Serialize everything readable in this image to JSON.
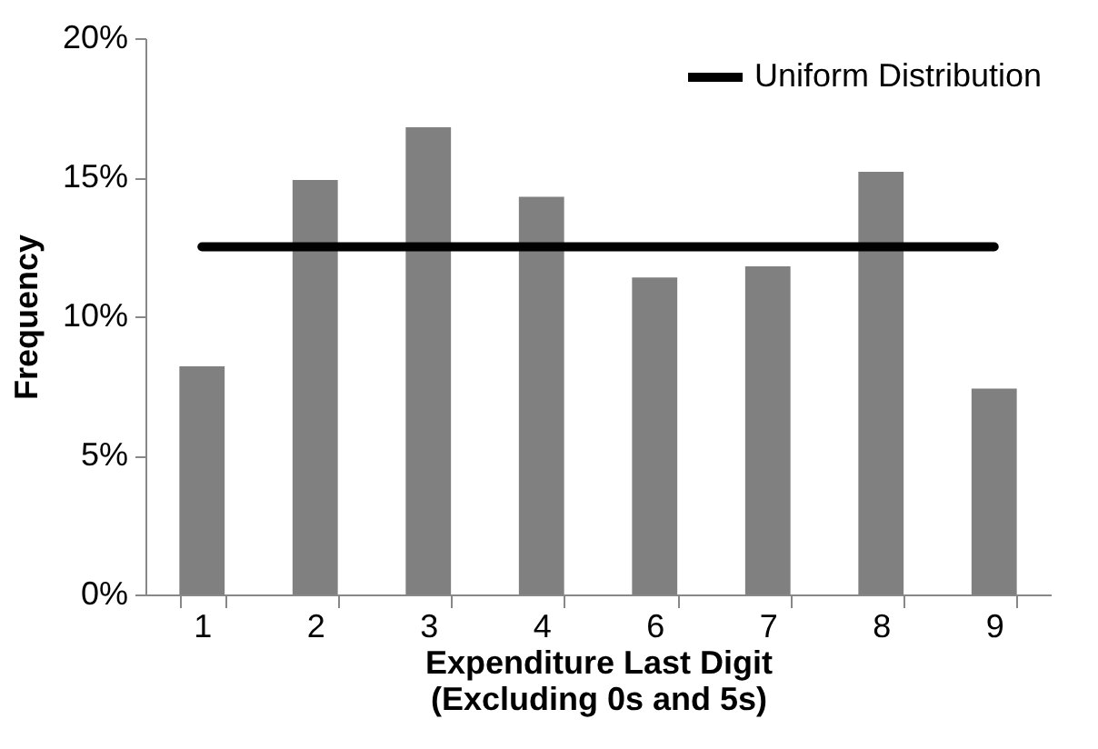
{
  "chart_data": {
    "type": "bar",
    "xlabel": "Expenditure Last Digit\n(Excluding 0s and 5s)",
    "ylabel": "Frequency",
    "categories": [
      "1",
      "2",
      "3",
      "4",
      "6",
      "7",
      "8",
      "9"
    ],
    "series": [
      {
        "color": "#808080",
        "values": [
          8.2,
          14.9,
          16.8,
          14.3,
          11.4,
          11.8,
          15.2,
          7.4
        ]
      },
      {
        "type": "line",
        "name": "Uniform Distribution",
        "color": "#000000",
        "values": [
          12.5,
          12.5,
          12.5,
          12.5,
          12.5,
          12.5,
          12.5,
          12.5
        ]
      }
    ],
    "ylim": [
      0,
      20
    ],
    "yticks": [
      {
        "value": 0,
        "label": "0%"
      },
      {
        "value": 5,
        "label": "5%"
      },
      {
        "value": 10,
        "label": "10%"
      },
      {
        "value": 15,
        "label": "15%"
      },
      {
        "value": 20,
        "label": "20%"
      }
    ],
    "grid": false,
    "legend": "top right"
  }
}
